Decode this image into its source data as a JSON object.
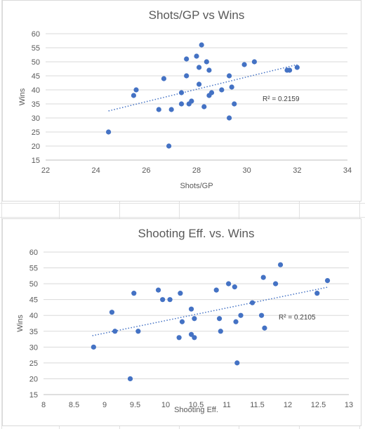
{
  "colors": {
    "point": "#4472c4",
    "trend": "#4472c4",
    "grid": "#d9d9d9",
    "text": "#595959"
  },
  "chart_data": [
    {
      "type": "scatter",
      "title": "Shots/GP vs Wins",
      "xlabel": "Shots/GP",
      "ylabel": "Wins",
      "xlim": [
        22,
        34
      ],
      "ylim": [
        15,
        60
      ],
      "xticks": [
        "22",
        "24",
        "26",
        "28",
        "30",
        "32",
        "34"
      ],
      "yticks": [
        "15",
        "20",
        "25",
        "30",
        "35",
        "40",
        "45",
        "50",
        "55",
        "60"
      ],
      "grid": "horizontal",
      "r2_label": "R² = 0.2159",
      "trendline": {
        "style": "dotted",
        "x": [
          24.5,
          32.0
        ],
        "y": [
          32.5,
          49.0
        ]
      },
      "points": [
        {
          "x": 24.5,
          "y": 25
        },
        {
          "x": 25.5,
          "y": 38
        },
        {
          "x": 25.6,
          "y": 40
        },
        {
          "x": 26.5,
          "y": 33
        },
        {
          "x": 26.7,
          "y": 44
        },
        {
          "x": 26.9,
          "y": 20
        },
        {
          "x": 27.0,
          "y": 33
        },
        {
          "x": 27.4,
          "y": 39
        },
        {
          "x": 27.4,
          "y": 35
        },
        {
          "x": 27.6,
          "y": 51
        },
        {
          "x": 27.6,
          "y": 45
        },
        {
          "x": 27.7,
          "y": 35
        },
        {
          "x": 27.8,
          "y": 36
        },
        {
          "x": 28.0,
          "y": 52
        },
        {
          "x": 28.1,
          "y": 48
        },
        {
          "x": 28.1,
          "y": 42
        },
        {
          "x": 28.2,
          "y": 56
        },
        {
          "x": 28.3,
          "y": 34
        },
        {
          "x": 28.4,
          "y": 50
        },
        {
          "x": 28.5,
          "y": 47
        },
        {
          "x": 28.5,
          "y": 38
        },
        {
          "x": 28.6,
          "y": 39
        },
        {
          "x": 29.0,
          "y": 40
        },
        {
          "x": 29.3,
          "y": 45
        },
        {
          "x": 29.3,
          "y": 30
        },
        {
          "x": 29.4,
          "y": 41
        },
        {
          "x": 29.5,
          "y": 35
        },
        {
          "x": 29.9,
          "y": 49
        },
        {
          "x": 30.3,
          "y": 50
        },
        {
          "x": 31.6,
          "y": 47
        },
        {
          "x": 31.7,
          "y": 47
        },
        {
          "x": 32.0,
          "y": 48
        }
      ]
    },
    {
      "type": "scatter",
      "title": "Shooting Eff. vs. Wins",
      "xlabel": "Shooting Eff.",
      "ylabel": "Wins",
      "xlim": [
        8,
        13
      ],
      "ylim": [
        15,
        60
      ],
      "xticks": [
        "8",
        "8.5",
        "9",
        "9.5",
        "10",
        "10.5",
        "11",
        "11.5",
        "12",
        "12.5",
        "13"
      ],
      "yticks": [
        "15",
        "20",
        "25",
        "30",
        "35",
        "40",
        "45",
        "50",
        "55",
        "60"
      ],
      "grid": "horizontal",
      "r2_label": "R² = 0.2105",
      "trendline": {
        "style": "dotted",
        "x": [
          8.8,
          12.65
        ],
        "y": [
          33.6,
          48.9
        ]
      },
      "points": [
        {
          "x": 8.82,
          "y": 30
        },
        {
          "x": 9.12,
          "y": 41
        },
        {
          "x": 9.17,
          "y": 35
        },
        {
          "x": 9.42,
          "y": 20
        },
        {
          "x": 9.48,
          "y": 47
        },
        {
          "x": 9.55,
          "y": 35
        },
        {
          "x": 9.88,
          "y": 48
        },
        {
          "x": 9.95,
          "y": 45
        },
        {
          "x": 10.07,
          "y": 45
        },
        {
          "x": 10.22,
          "y": 33
        },
        {
          "x": 10.24,
          "y": 47
        },
        {
          "x": 10.27,
          "y": 38
        },
        {
          "x": 10.42,
          "y": 34
        },
        {
          "x": 10.42,
          "y": 42
        },
        {
          "x": 10.47,
          "y": 33
        },
        {
          "x": 10.47,
          "y": 39
        },
        {
          "x": 10.83,
          "y": 48
        },
        {
          "x": 10.88,
          "y": 39
        },
        {
          "x": 10.9,
          "y": 35
        },
        {
          "x": 11.03,
          "y": 50
        },
        {
          "x": 11.13,
          "y": 49
        },
        {
          "x": 11.15,
          "y": 38
        },
        {
          "x": 11.17,
          "y": 25
        },
        {
          "x": 11.23,
          "y": 40
        },
        {
          "x": 11.42,
          "y": 44
        },
        {
          "x": 11.57,
          "y": 40
        },
        {
          "x": 11.6,
          "y": 52
        },
        {
          "x": 11.62,
          "y": 36
        },
        {
          "x": 11.8,
          "y": 50
        },
        {
          "x": 11.88,
          "y": 56
        },
        {
          "x": 12.48,
          "y": 47
        },
        {
          "x": 12.65,
          "y": 51
        }
      ]
    }
  ]
}
